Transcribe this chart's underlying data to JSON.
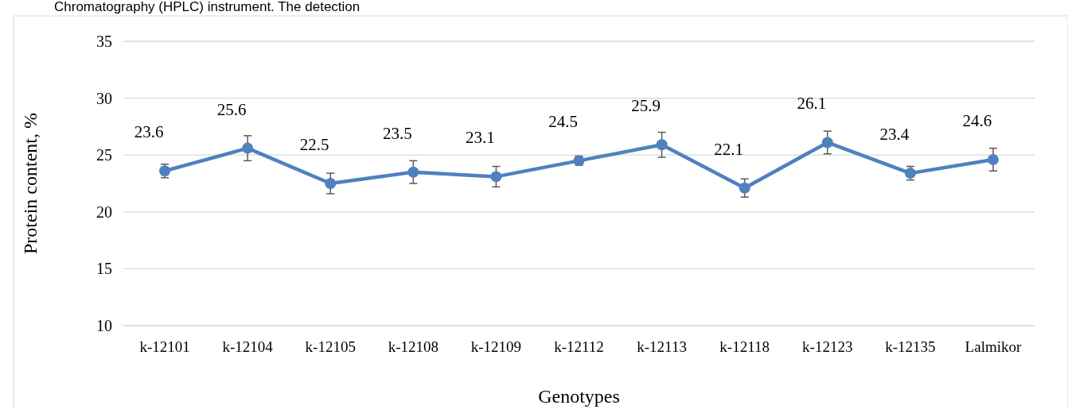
{
  "chart_data": {
    "type": "line",
    "xlabel": "Genotypes",
    "ylabel": "Protein content, %",
    "annotations": [
      "Chromatography (HPLC) instrument. The detection"
    ],
    "categories": [
      "k-12101",
      "k-12104",
      "k-12105",
      "k-12108",
      "k-12109",
      "k-12112",
      "k-12113",
      "k-12118",
      "k-12123",
      "k-12135",
      "Lalmikor"
    ],
    "series": [
      {
        "color": "#4f81bd",
        "values": [
          23.6,
          25.6,
          22.5,
          23.5,
          23.1,
          24.5,
          25.9,
          22.1,
          26.1,
          23.4,
          24.6
        ],
        "errors": [
          0.6,
          1.1,
          0.9,
          1.0,
          0.9,
          0.4,
          1.1,
          0.8,
          1.0,
          0.6,
          1.0
        ]
      }
    ],
    "ylim": [
      10,
      35
    ],
    "yticks": [
      10,
      15,
      20,
      25,
      30,
      35
    ],
    "grid": "y",
    "marker": "circle",
    "line_style": "solid",
    "data_labels": true
  }
}
